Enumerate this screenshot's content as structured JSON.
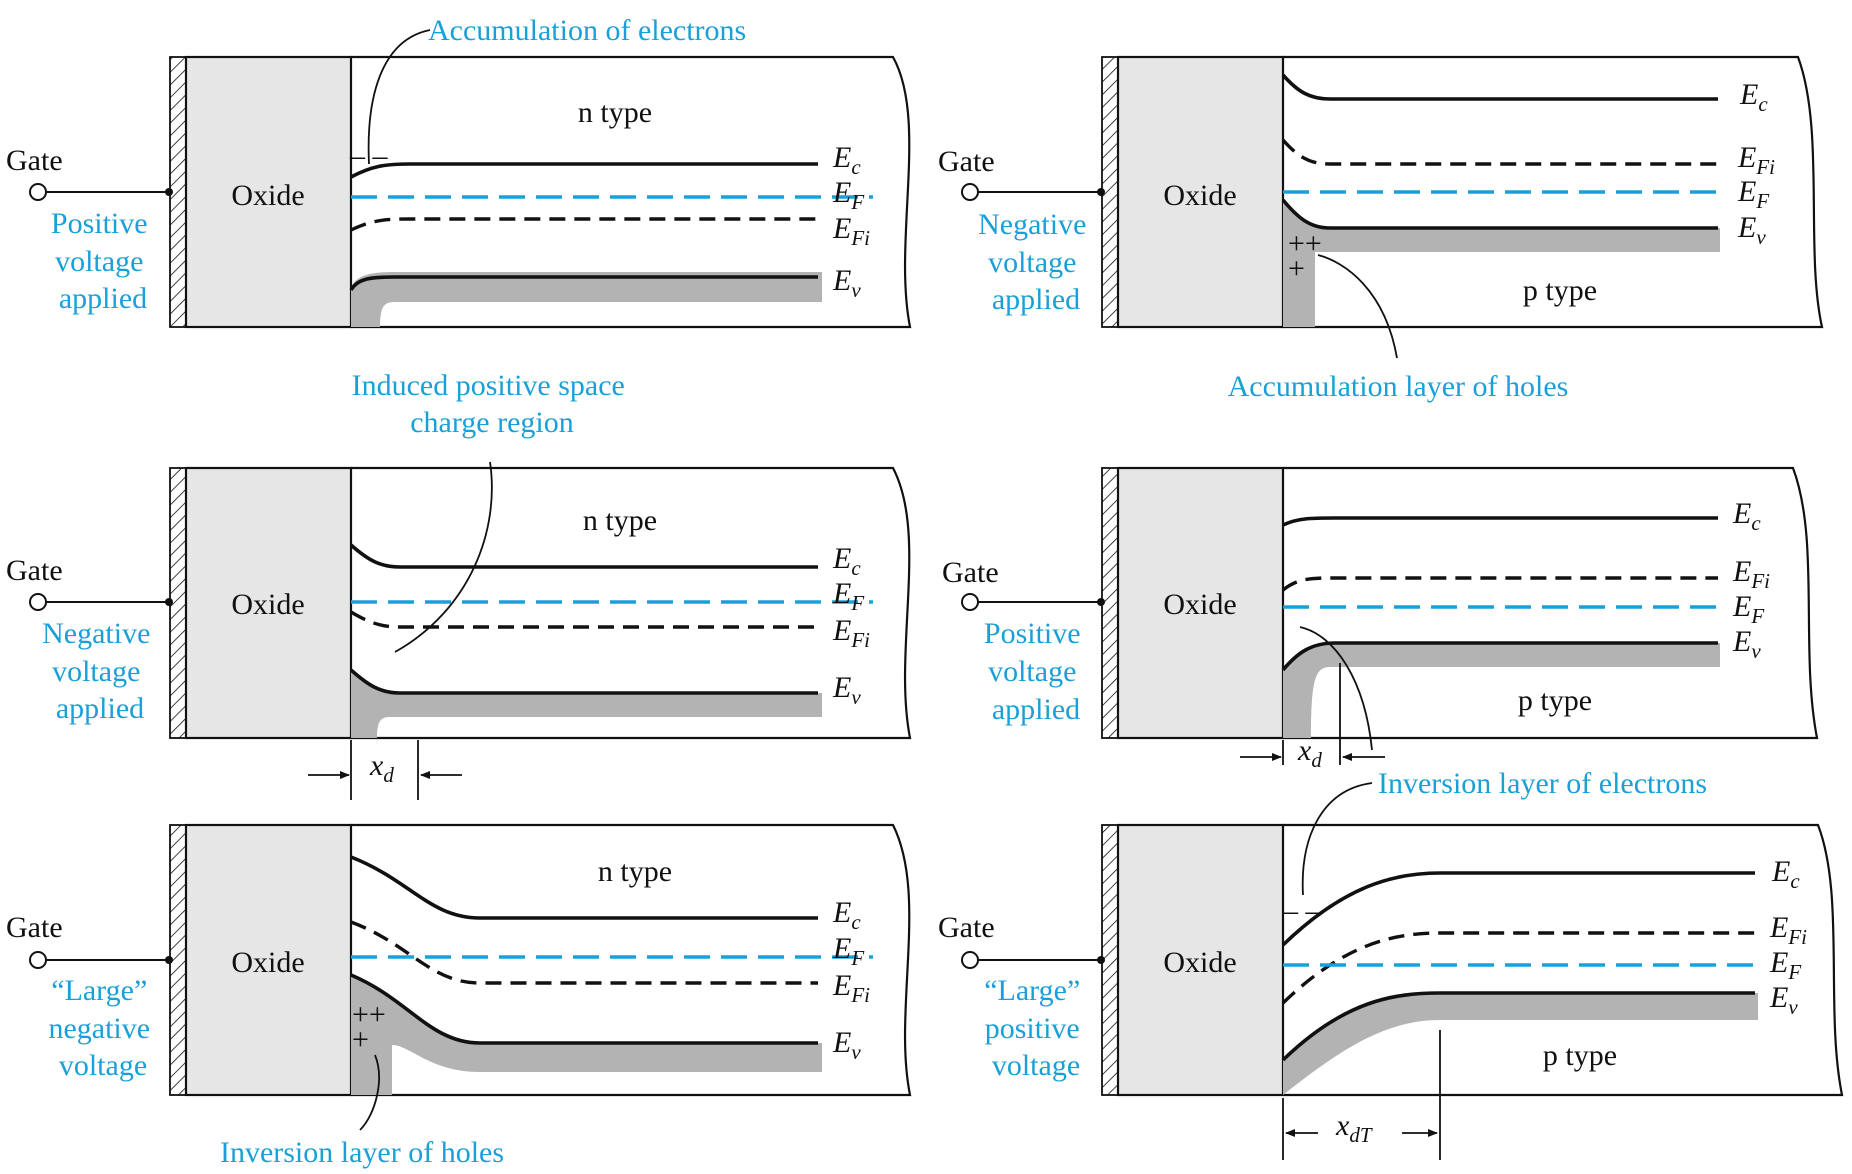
{
  "panels": [
    {
      "gate": "Gate",
      "oxide": "Oxide",
      "type": "n type",
      "bias": [
        "Positive",
        "voltage",
        "applied"
      ],
      "callout": "Accumulation of electrons",
      "levels": {
        "ec": "E",
        "ec_sub": "c",
        "ef": "E",
        "ef_sub": "F",
        "efi": "E",
        "efi_sub": "Fi",
        "ev": "E",
        "ev_sub": "v"
      }
    },
    {
      "gate": "Gate",
      "oxide": "Oxide",
      "type": "p type",
      "bias": [
        "Negative",
        "voltage",
        "applied"
      ],
      "callout": "Accumulation layer of holes",
      "levels": {
        "ec": "E",
        "ec_sub": "c",
        "ef": "E",
        "ef_sub": "F",
        "efi": "E",
        "efi_sub": "Fi",
        "ev": "E",
        "ev_sub": "v"
      }
    },
    {
      "gate": "Gate",
      "oxide": "Oxide",
      "type": "n type",
      "bias": [
        "Negative",
        "voltage",
        "applied"
      ],
      "callout": [
        "Induced positive space",
        "charge region"
      ],
      "width": "x",
      "width_sub": "d",
      "levels": {
        "ec": "E",
        "ec_sub": "c",
        "ef": "E",
        "ef_sub": "F",
        "efi": "E",
        "efi_sub": "Fi",
        "ev": "E",
        "ev_sub": "v"
      }
    },
    {
      "gate": "Gate",
      "oxide": "Oxide",
      "type": "p type",
      "bias": [
        "Positive",
        "voltage",
        "applied"
      ],
      "width": "x",
      "width_sub": "d",
      "levels": {
        "ec": "E",
        "ec_sub": "c",
        "ef": "E",
        "ef_sub": "F",
        "efi": "E",
        "efi_sub": "Fi",
        "ev": "E",
        "ev_sub": "v"
      }
    },
    {
      "gate": "Gate",
      "oxide": "Oxide",
      "type": "n type",
      "bias": [
        "“Large”",
        "negative",
        "voltage"
      ],
      "callout": "Inversion layer of holes",
      "levels": {
        "ec": "E",
        "ec_sub": "c",
        "ef": "E",
        "ef_sub": "F",
        "efi": "E",
        "efi_sub": "Fi",
        "ev": "E",
        "ev_sub": "v"
      }
    },
    {
      "gate": "Gate",
      "oxide": "Oxide",
      "type": "p type",
      "bias": [
        "“Large”",
        "positive",
        "voltage"
      ],
      "callout": "Inversion layer of electrons",
      "width": "x",
      "width_sub": "dT",
      "levels": {
        "ec": "E",
        "ec_sub": "c",
        "ef": "E",
        "ef_sub": "F",
        "efi": "E",
        "efi_sub": "Fi",
        "ev": "E",
        "ev_sub": "v"
      }
    }
  ],
  "charges": {
    "electron": "– –",
    "hole_pair": "++",
    "hole": "+"
  },
  "colors": {
    "accent": "#1aa0d8",
    "oxide": "#e6e6e6",
    "shade": "#b3b3b3",
    "line": "#111111"
  }
}
